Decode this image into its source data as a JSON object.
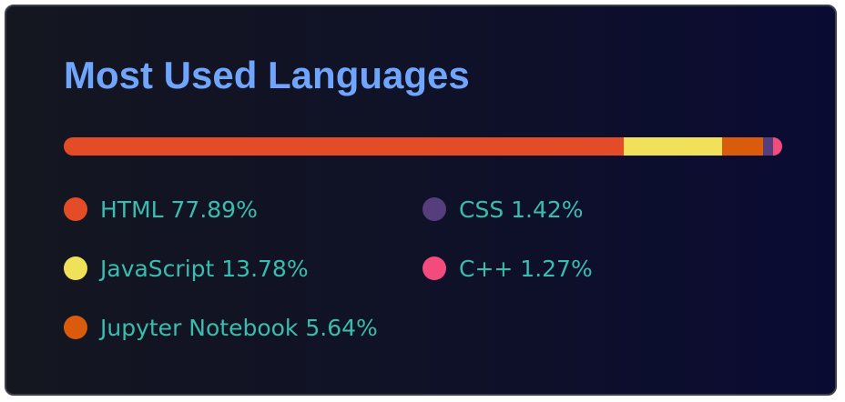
{
  "card": {
    "title": "Most Used Languages"
  },
  "chart_data": {
    "type": "bar",
    "stacked": true,
    "title": "Most Used Languages",
    "categories": [
      "HTML",
      "JavaScript",
      "Jupyter Notebook",
      "CSS",
      "C++"
    ],
    "values": [
      77.89,
      13.78,
      5.64,
      1.42,
      1.27
    ],
    "labels": [
      "HTML 77.89%",
      "JavaScript 13.78%",
      "Jupyter Notebook 5.64%",
      "CSS 1.42%",
      "C++ 1.27%"
    ],
    "colors": [
      "#e34c26",
      "#f1e05a",
      "#da5b0b",
      "#563d7c",
      "#f34b7d"
    ],
    "legend": "bottom, two columns"
  }
}
